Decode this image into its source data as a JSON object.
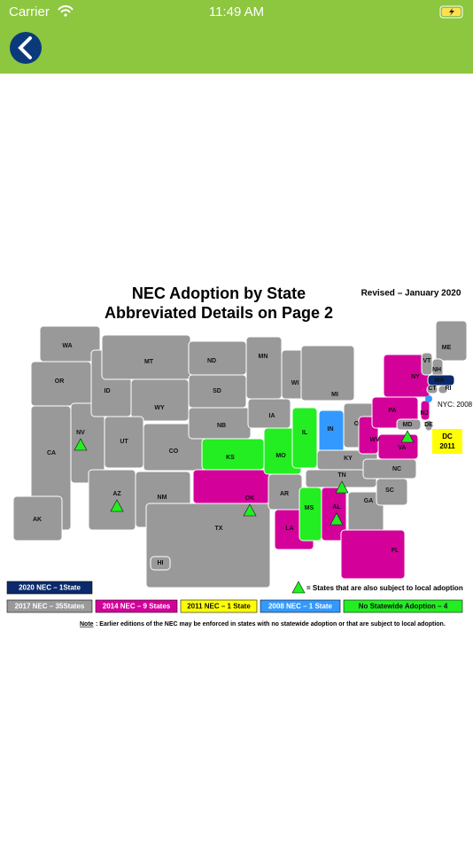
{
  "status_bar": {
    "carrier": "Carrier",
    "time": "11:49 AM"
  },
  "map": {
    "title": [
      "NEC Adoption by State",
      "Abbreviated Details on Page 2"
    ],
    "revised": "Revised – January 2020",
    "states": [
      {
        "label": "WA",
        "color": "#999999"
      },
      {
        "label": "OR",
        "color": "#999999"
      },
      {
        "label": "CA",
        "color": "#999999"
      },
      {
        "label": "NV",
        "color": "#999999",
        "local_adoption": true
      },
      {
        "label": "ID",
        "color": "#999999"
      },
      {
        "label": "MT",
        "color": "#999999"
      },
      {
        "label": "WY",
        "color": "#999999"
      },
      {
        "label": "UT",
        "color": "#999999"
      },
      {
        "label": "CO",
        "color": "#999999"
      },
      {
        "label": "AZ",
        "color": "#999999",
        "local_adoption": true
      },
      {
        "label": "NM",
        "color": "#999999"
      },
      {
        "label": "ND",
        "color": "#999999"
      },
      {
        "label": "SD",
        "color": "#999999"
      },
      {
        "label": "NB",
        "color": "#999999"
      },
      {
        "label": "KS",
        "color": "#22ee22"
      },
      {
        "label": "OK",
        "color": "#d4009a",
        "local_adoption": true
      },
      {
        "label": "TX",
        "color": "#999999"
      },
      {
        "label": "MN",
        "color": "#999999"
      },
      {
        "label": "IA",
        "color": "#999999"
      },
      {
        "label": "MO",
        "color": "#22ee22"
      },
      {
        "label": "AR",
        "color": "#999999"
      },
      {
        "label": "LA",
        "color": "#d4009a"
      },
      {
        "label": "WI",
        "color": "#999999"
      },
      {
        "label": "IL",
        "color": "#22ee22"
      },
      {
        "label": "MI",
        "color": "#999999"
      },
      {
        "label": "IN",
        "color": "#3399ff"
      },
      {
        "label": "OH",
        "color": "#999999"
      },
      {
        "label": "KY",
        "color": "#999999"
      },
      {
        "label": "TN",
        "color": "#999999",
        "local_adoption": true
      },
      {
        "label": "MS",
        "color": "#22ee22"
      },
      {
        "label": "AL",
        "color": "#d4009a",
        "local_adoption": true
      },
      {
        "label": "GA",
        "color": "#999999"
      },
      {
        "label": "FL",
        "color": "#d4009a"
      },
      {
        "label": "SC",
        "color": "#999999"
      },
      {
        "label": "NC",
        "color": "#999999"
      },
      {
        "label": "VA",
        "color": "#d4009a"
      },
      {
        "label": "WV",
        "color": "#d4009a"
      },
      {
        "label": "PA",
        "color": "#d4009a"
      },
      {
        "label": "NY",
        "color": "#d4009a"
      },
      {
        "label": "ME",
        "color": "#999999"
      },
      {
        "label": "VT",
        "color": "#999999"
      },
      {
        "label": "NH",
        "color": "#999999"
      },
      {
        "label": "MA",
        "color": "#0a2a6b"
      },
      {
        "label": "CT",
        "color": "#999999"
      },
      {
        "label": "RI",
        "color": "#999999"
      },
      {
        "label": "NJ",
        "color": "#d4009a"
      },
      {
        "label": "DE",
        "color": "#999999"
      },
      {
        "label": "MD",
        "color": "#999999",
        "local_adoption": true
      },
      {
        "label": "AK",
        "color": "#999999"
      },
      {
        "label": "HI",
        "color": "#999999"
      }
    ],
    "nyc": "NYC: 2008",
    "dc": [
      "DC",
      "2011"
    ],
    "legend": [
      {
        "label": "2020 NEC – 1State",
        "color": "#0a2a6b"
      },
      {
        "label": "2017 NEC – 35States",
        "color": "#999999"
      },
      {
        "label": "2014 NEC – 9 States",
        "color": "#d4009a"
      },
      {
        "label": "2011 NEC – 1 State",
        "color": "#ffff00"
      },
      {
        "label": "2008 NEC – 1 State",
        "color": "#3399ff"
      },
      {
        "label": "No Statewide Adoption – 4",
        "color": "#22ee22"
      }
    ],
    "triangle_legend": "= States that are also subject to local adoption",
    "note": {
      "lead": "Note",
      "text": ": Earlier editions of the NEC may be enforced in states with no statewide adoption or that are subject to local adoption."
    }
  }
}
